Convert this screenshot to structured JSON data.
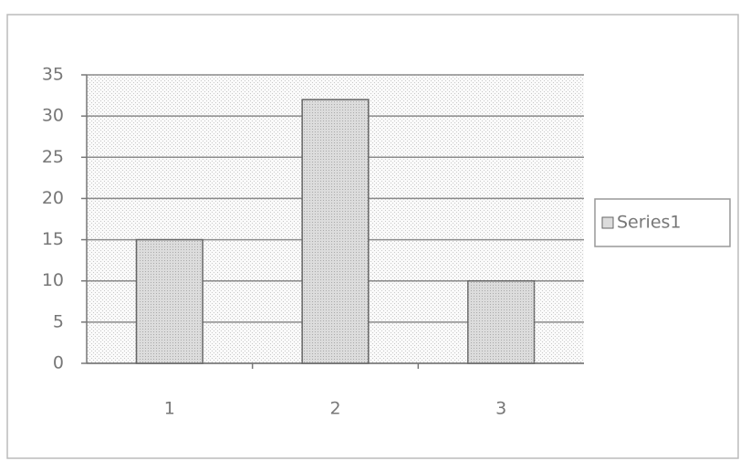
{
  "chart_data": {
    "type": "bar",
    "categories": [
      "1",
      "2",
      "3"
    ],
    "series": [
      {
        "name": "Series1",
        "color": "#dcdcdc",
        "values": [
          15,
          32,
          10
        ]
      }
    ],
    "ylim": [
      0,
      35
    ],
    "yticks": [
      0,
      5,
      10,
      15,
      20,
      25,
      30,
      35
    ],
    "grid": true,
    "legend": "right"
  }
}
